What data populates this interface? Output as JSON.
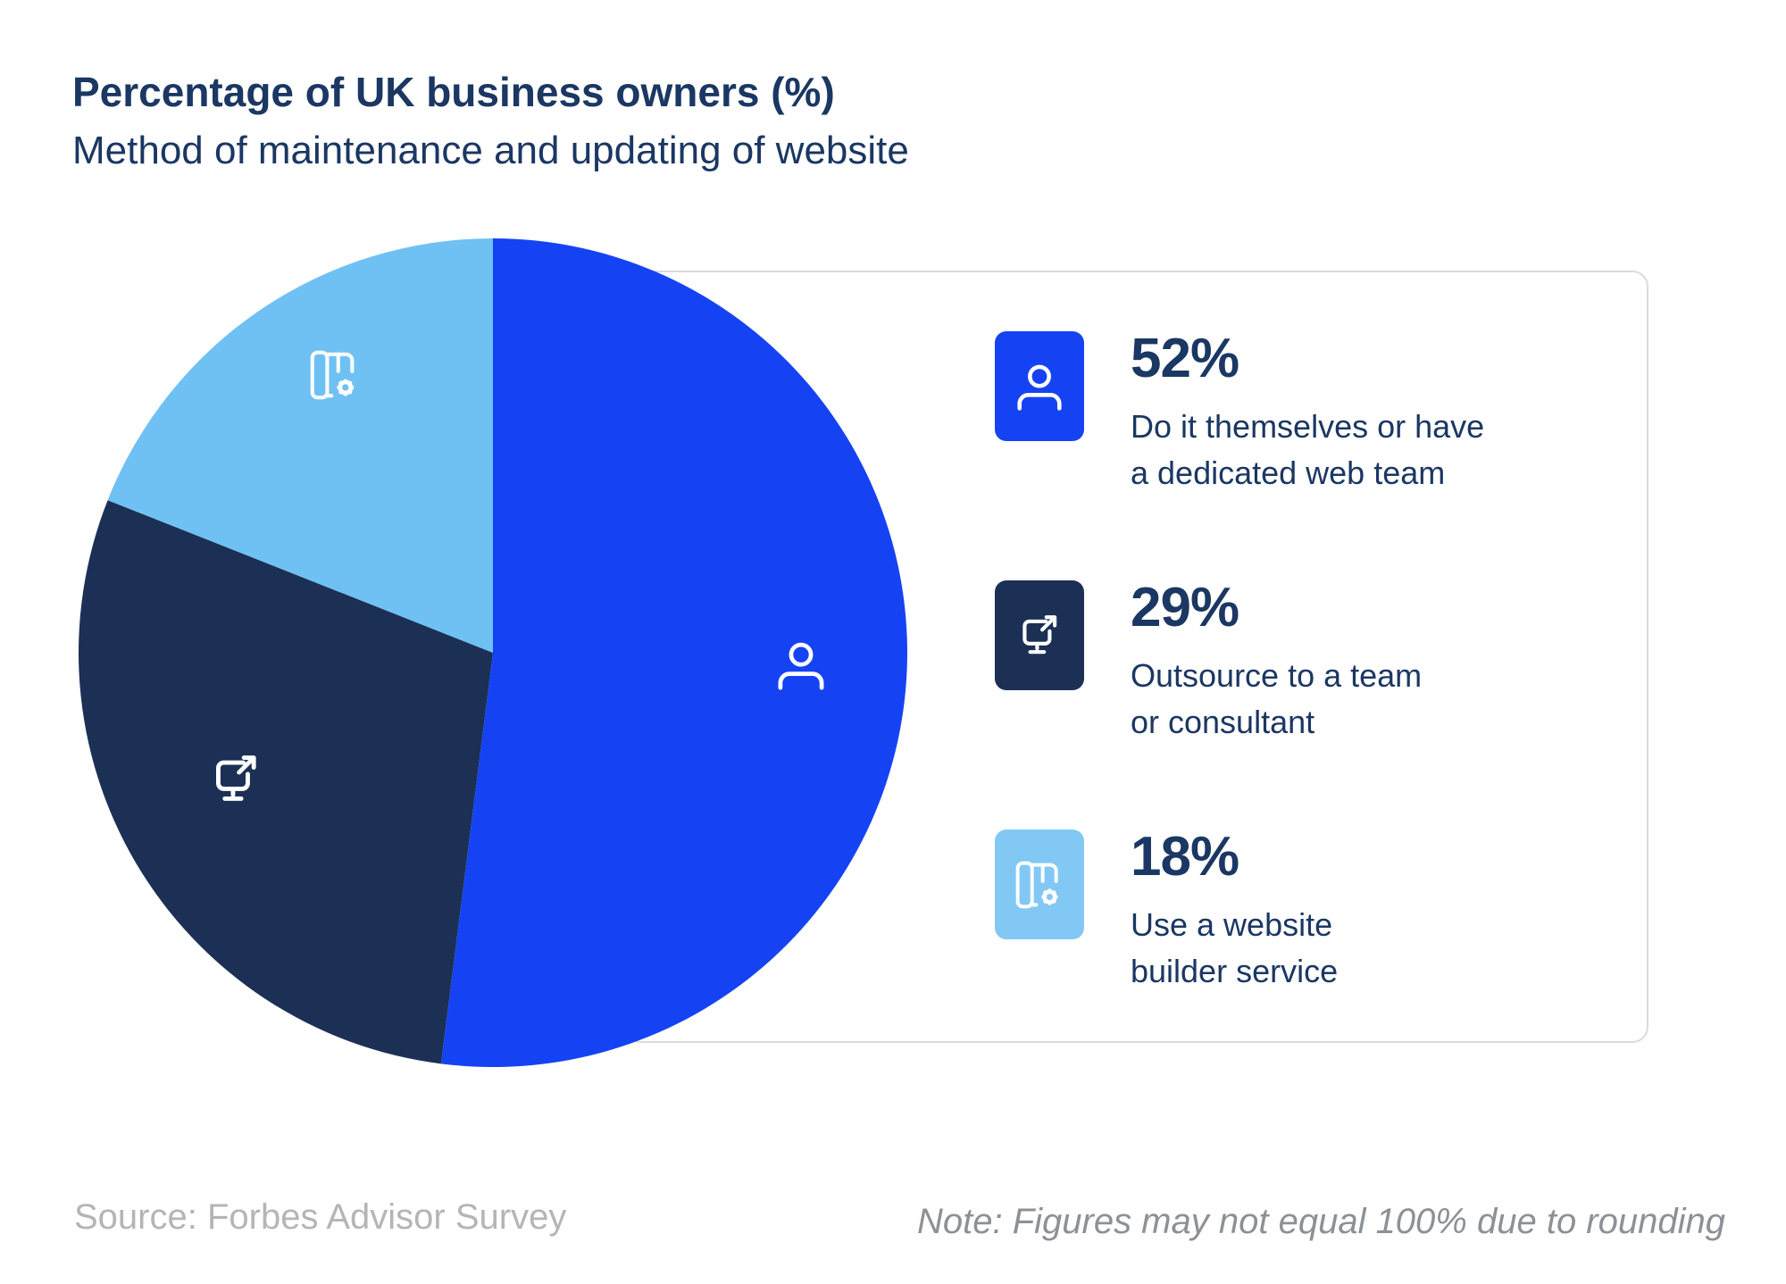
{
  "header": {
    "title": "Percentage of UK business owners (%)",
    "subtitle": "Method of maintenance and updating of website"
  },
  "legend": {
    "items": [
      {
        "percent": "52%",
        "description": "Do it themselves or have\na dedicated web team",
        "icon": "person-icon",
        "tile_color": "#1543F4"
      },
      {
        "percent": "29%",
        "description": "Outsource to a team\nor consultant",
        "icon": "monitor-external-link-icon",
        "tile_color": "#1B3054"
      },
      {
        "percent": "18%",
        "description": "Use a website\nbuilder service",
        "icon": "website-builder-gear-icon",
        "tile_color": "#82C8F4"
      }
    ]
  },
  "footer": {
    "source": "Source: Forbes Advisor Survey",
    "note": "Note: Figures may not equal 100% due to rounding"
  },
  "colors": {
    "text_navy": "#1B3763",
    "panel_border": "#DBDBDB",
    "source_gray": "#B5B5B5",
    "note_gray": "#8C9196",
    "background": "#FFFFFF"
  },
  "chart_data": {
    "type": "pie",
    "title": "Percentage of UK business owners (%)",
    "subtitle": "Method of maintenance and updating of website",
    "start_angle_deg": -90,
    "direction": "clockwise",
    "legend_position": "right",
    "slices": [
      {
        "label": "Do it themselves or have a dedicated web team",
        "value": 52,
        "color": "#1543F4",
        "icon": "person-icon"
      },
      {
        "label": "Outsource to a team or consultant",
        "value": 29,
        "color": "#1B3054",
        "icon": "monitor-external-link-icon"
      },
      {
        "label": "Use a website builder service",
        "value": 18,
        "color": "#6FC1F4",
        "icon": "website-builder-gear-icon"
      }
    ],
    "source": "Source: Forbes Advisor Survey",
    "note": "Note: Figures may not equal 100% due to rounding"
  }
}
